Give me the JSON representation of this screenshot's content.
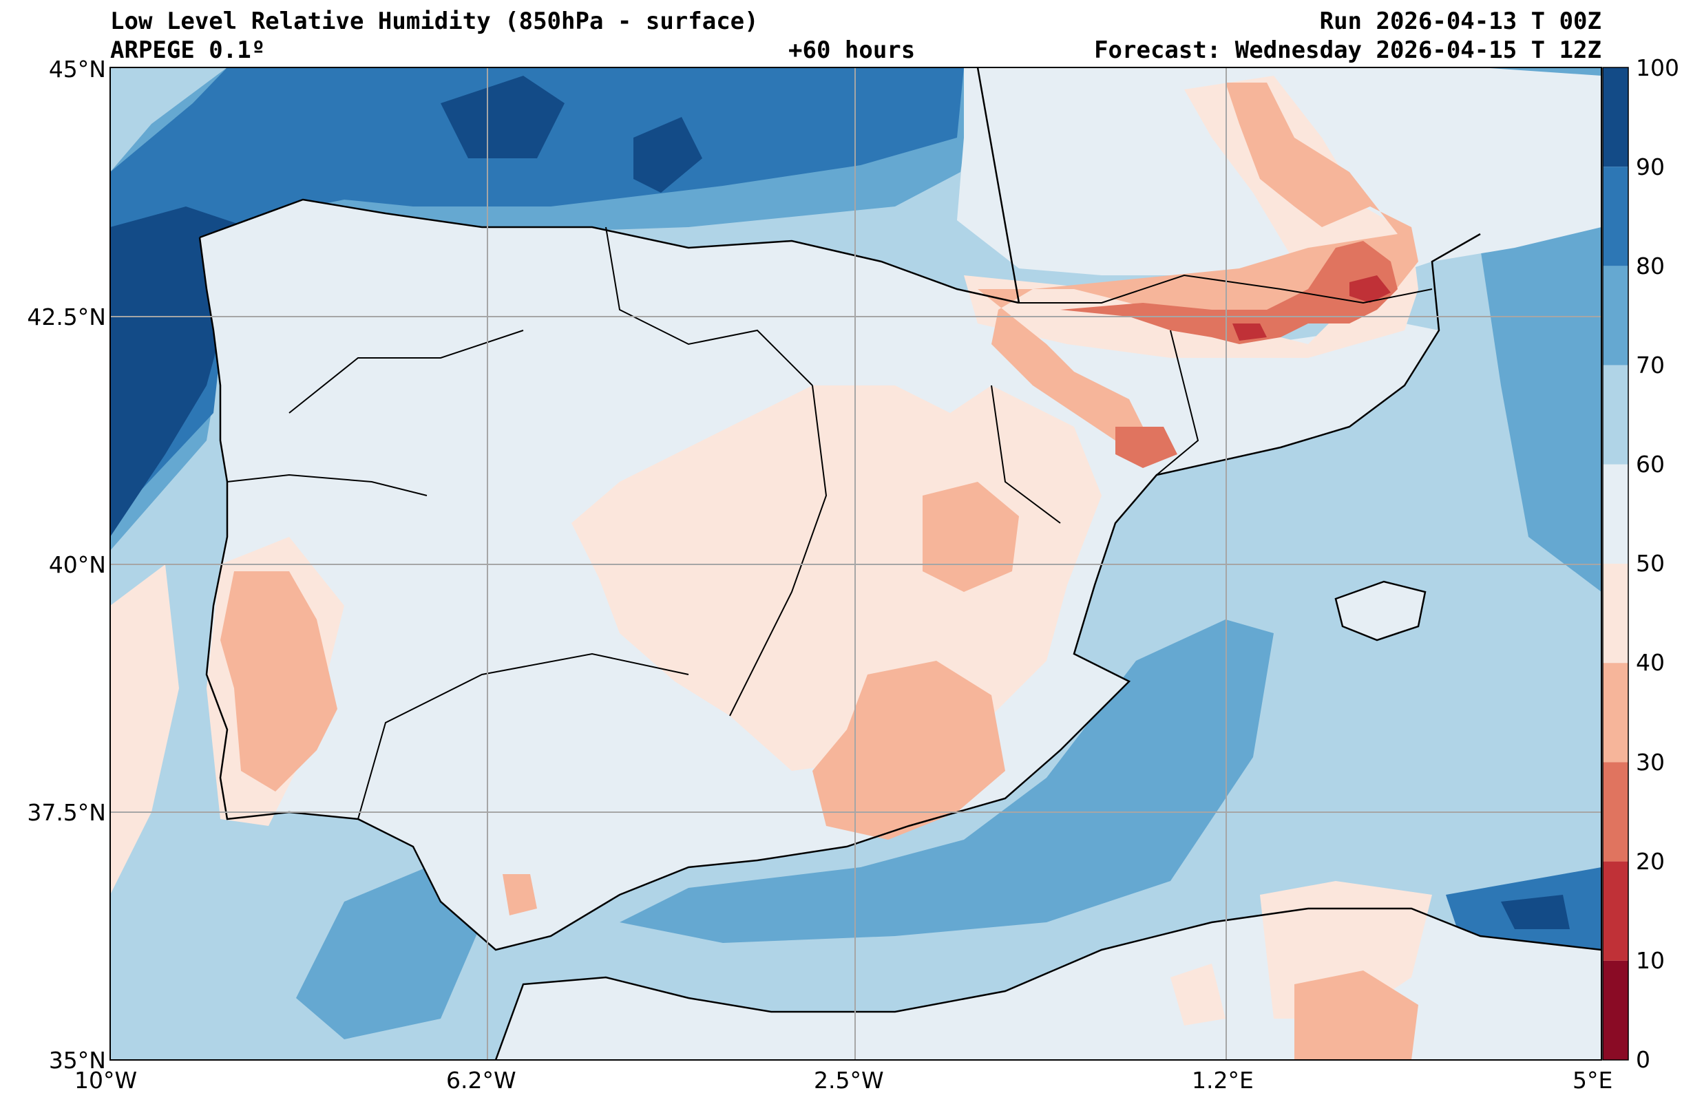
{
  "header": {
    "title": "Low Level Relative Humidity (850hPa - surface)",
    "model": "ARPEGE 0.1º",
    "lead": "+60 hours",
    "run": "Run 2026-04-13 T 00Z",
    "forecast": "Forecast: Wednesday 2026-04-15 T 12Z"
  },
  "axes": {
    "lat_labels": [
      "45°N",
      "42.5°N",
      "40°N",
      "37.5°N",
      "35°N"
    ],
    "lon_labels": [
      "10°W",
      "6.2°W",
      "2.5°W",
      "1.2°E",
      "5°E"
    ]
  },
  "colorbar": {
    "ticks": [
      "100",
      "90",
      "80",
      "70",
      "60",
      "50",
      "40",
      "30",
      "20",
      "10",
      "0"
    ],
    "colors": [
      "#134b87",
      "#2d77b5",
      "#65a8d1",
      "#b0d4e7",
      "#e6eef4",
      "#fbe6dc",
      "#f6b59a",
      "#e0745f",
      "#c03137",
      "#8a0b25"
    ]
  },
  "map": {
    "sea_shallow": "#b0d4e7",
    "sea_deep": "#65a8d1",
    "atlantic_far": "#134b87",
    "land_base": "#e6eef4",
    "dry_mid": "#fbe6dc",
    "dry_strong": "#f6b59a",
    "dry_core": "#e0745f",
    "dry_min": "#c03137"
  }
}
